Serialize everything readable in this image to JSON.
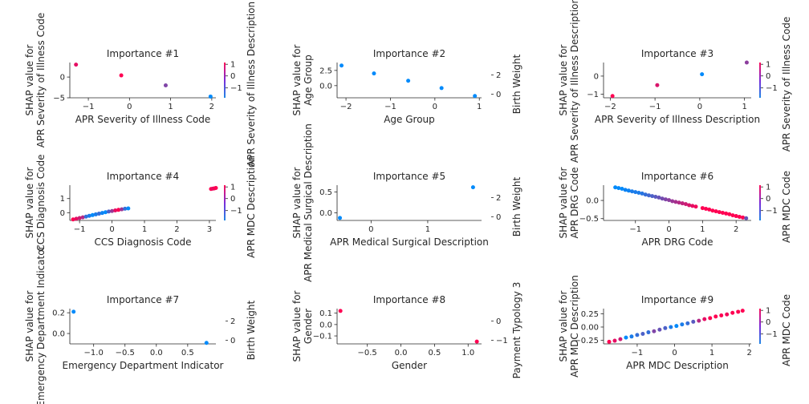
{
  "figure": {
    "colors": {
      "low": "#008afb",
      "high": "#ff0052",
      "text": "#262626",
      "axis": "#262626",
      "colorbar_low": "#1e88e5",
      "colorbar_high": "#ff0d57"
    }
  },
  "chart_data": [
    {
      "type": "scatter",
      "title": "Importance #1",
      "xlabel": "APR Severity of Illness Code",
      "ylabel": [
        "SHAP value for",
        "APR Severity of Illness Code"
      ],
      "colorbar_label": "APR Severity of Illness Description",
      "xlim": [
        -1.45,
        2.1
      ],
      "ylim": [
        -5,
        3.5
      ],
      "xticks": [
        -1,
        0,
        1,
        2
      ],
      "xtick_labels": [
        "−1",
        "0",
        "1",
        "2"
      ],
      "yticks": [
        0,
        -5
      ],
      "ytick_labels": [
        "0",
        "−5"
      ],
      "colorbar_ticks": [
        1,
        0,
        -1
      ],
      "colorbar_tick_labels": [
        "1",
        "0",
        "−1"
      ],
      "x": [
        -1.3,
        -0.2,
        0.88,
        1.97
      ],
      "y": [
        3.0,
        0.4,
        -2.0,
        -4.7
      ],
      "c": [
        0.9,
        1.0,
        0.5,
        0.0
      ]
    },
    {
      "type": "scatter",
      "title": "Importance #2",
      "xlabel": "Age Group",
      "ylabel": [
        "SHAP value for",
        "Age Group"
      ],
      "colorbar_label": "Birth Weight",
      "colorbar_no_bar": true,
      "xlim": [
        -2.2,
        1.05
      ],
      "ylim": [
        -2.0,
        3.8
      ],
      "xticks": [
        -2,
        -1,
        0,
        1
      ],
      "xtick_labels": [
        "−2",
        "−1",
        "0",
        "1"
      ],
      "yticks": [
        2.5,
        0.0
      ],
      "ytick_labels": [
        "2.5",
        "0.0"
      ],
      "colorbar_ticks": [
        2,
        0
      ],
      "colorbar_tick_labels": [
        "2",
        "0"
      ],
      "x": [
        -2.1,
        -1.37,
        -0.6,
        0.15,
        0.9
      ],
      "y": [
        3.3,
        2.0,
        0.8,
        -0.4,
        -1.7
      ],
      "c": [
        0.0,
        0.0,
        0.0,
        0.0,
        0.0
      ]
    },
    {
      "type": "scatter",
      "title": "Importance #3",
      "xlabel": "APR Severity of Illness Description",
      "ylabel": [
        "SHAP value for",
        "APR Severity of Illness Description"
      ],
      "colorbar_label": "APR Severity of Illness Code",
      "xlim": [
        -2.15,
        1.15
      ],
      "ylim": [
        -1.2,
        0.75
      ],
      "xticks": [
        -2,
        -1,
        0,
        1
      ],
      "xtick_labels": [
        "−2",
        "−1",
        "0",
        "1"
      ],
      "yticks": [
        0,
        -1
      ],
      "ytick_labels": [
        "0",
        "−1"
      ],
      "colorbar_ticks": [
        1,
        0,
        -1
      ],
      "colorbar_tick_labels": [
        "1",
        "0",
        "−1"
      ],
      "x": [
        -1.95,
        -0.95,
        0.05,
        1.05
      ],
      "y": [
        -1.1,
        -0.5,
        0.1,
        0.75
      ],
      "c": [
        1.0,
        0.85,
        0.0,
        0.55
      ]
    },
    {
      "type": "scatter",
      "title": "Importance #4",
      "xlabel": "CCS Diagnosis Code",
      "ylabel": [
        "SHAP value for",
        "CCS Diagnosis Code"
      ],
      "colorbar_label": "APR MDC Description",
      "xlim": [
        -1.3,
        3.2
      ],
      "ylim": [
        -0.55,
        1.95
      ],
      "xticks": [
        -1,
        0,
        1,
        2,
        3
      ],
      "xtick_labels": [
        "−1",
        "0",
        "1",
        "2",
        "3"
      ],
      "yticks": [
        1,
        0
      ],
      "ytick_labels": [
        "1",
        "0"
      ],
      "colorbar_ticks": [
        1,
        0,
        -1
      ],
      "colorbar_tick_labels": [
        "1",
        "0",
        "−1"
      ],
      "x": [
        -1.2,
        -1.1,
        -1.0,
        -0.9,
        -0.8,
        -0.7,
        -0.6,
        -0.5,
        -0.4,
        -0.3,
        -0.2,
        -0.1,
        0.0,
        0.1,
        0.2,
        0.3,
        0.4,
        0.5,
        3.05,
        3.1,
        3.15,
        3.2
      ],
      "y": [
        -0.48,
        -0.43,
        -0.38,
        -0.33,
        -0.28,
        -0.22,
        -0.17,
        -0.12,
        -0.07,
        -0.02,
        0.03,
        0.08,
        0.12,
        0.16,
        0.2,
        0.24,
        0.28,
        0.3,
        1.68,
        1.7,
        1.72,
        1.75
      ],
      "c": [
        1.0,
        0.9,
        0.8,
        0.7,
        0.2,
        0.1,
        0.0,
        0.1,
        0.2,
        0.05,
        0.0,
        0.3,
        0.6,
        0.9,
        1.0,
        0.6,
        0.2,
        0.0,
        1.0,
        0.9,
        0.95,
        1.0
      ]
    },
    {
      "type": "scatter",
      "title": "Importance #5",
      "xlabel": "APR Medical Surgical Description",
      "ylabel": [
        "SHAP value for",
        "APR Medical Surgical Description"
      ],
      "colorbar_label": "Birth Weight",
      "colorbar_no_bar": true,
      "xlim": [
        -0.6,
        1.95
      ],
      "ylim": [
        -0.18,
        0.66
      ],
      "xticks": [
        0,
        1
      ],
      "xtick_labels": [
        "0",
        "1"
      ],
      "yticks": [
        0.5,
        0.0
      ],
      "ytick_labels": [
        "0.5",
        "0.0"
      ],
      "colorbar_ticks": [
        2,
        0
      ],
      "colorbar_tick_labels": [
        "2",
        "0"
      ],
      "x": [
        -0.55,
        1.8
      ],
      "y": [
        -0.12,
        0.61
      ],
      "c": [
        0.0,
        0.0
      ]
    },
    {
      "type": "scatter",
      "title": "Importance #6",
      "xlabel": "APR DRG Code",
      "ylabel": [
        "SHAP value for",
        "APR DRG Code"
      ],
      "colorbar_label": "APR MDC Code",
      "xlim": [
        -1.95,
        2.45
      ],
      "ylim": [
        -0.55,
        0.42
      ],
      "xticks": [
        -1,
        0,
        1,
        2
      ],
      "xtick_labels": [
        "−1",
        "0",
        "1",
        "2"
      ],
      "yticks": [
        0.0,
        -0.5
      ],
      "ytick_labels": [
        "0.0",
        "−0.5"
      ],
      "colorbar_ticks": [
        1,
        0,
        -1
      ],
      "colorbar_tick_labels": [
        "1",
        "0",
        "−1"
      ],
      "x": [
        -1.6,
        -1.5,
        -1.4,
        -1.3,
        -1.2,
        -1.1,
        -1.0,
        -0.9,
        -0.8,
        -0.7,
        -0.6,
        -0.5,
        -0.4,
        -0.3,
        -0.2,
        -0.1,
        0.0,
        0.1,
        0.2,
        0.3,
        0.4,
        0.5,
        0.6,
        0.7,
        0.8,
        1.0,
        1.1,
        1.2,
        1.3,
        1.4,
        1.5,
        1.6,
        1.7,
        1.8,
        1.9,
        2.0,
        2.1,
        2.2,
        2.3
      ],
      "y": [
        0.36,
        0.34,
        0.32,
        0.29,
        0.27,
        0.25,
        0.23,
        0.21,
        0.19,
        0.16,
        0.14,
        0.12,
        0.1,
        0.08,
        0.05,
        0.03,
        0.01,
        -0.02,
        -0.04,
        -0.06,
        -0.08,
        -0.1,
        -0.13,
        -0.15,
        -0.17,
        -0.21,
        -0.23,
        -0.25,
        -0.28,
        -0.3,
        -0.32,
        -0.34,
        -0.36,
        -0.38,
        -0.41,
        -0.43,
        -0.45,
        -0.47,
        -0.49
      ],
      "c": [
        0.0,
        0.0,
        0.0,
        0.05,
        0.05,
        0.1,
        0.1,
        0.1,
        0.15,
        0.2,
        0.25,
        0.3,
        0.35,
        0.4,
        0.45,
        0.5,
        0.55,
        0.6,
        0.65,
        0.7,
        0.75,
        0.8,
        0.85,
        0.9,
        0.95,
        1.0,
        1.0,
        1.0,
        1.0,
        1.0,
        1.0,
        1.0,
        1.0,
        1.0,
        1.0,
        1.0,
        1.0,
        1.0,
        0.4
      ]
    },
    {
      "type": "scatter",
      "title": "Importance #7",
      "xlabel": "Emergency Department Indicator",
      "ylabel": [
        "SHAP value for",
        "Emergency Department Indicator"
      ],
      "colorbar_label": "Birth Weight",
      "colorbar_no_bar": true,
      "xlim": [
        -1.38,
        0.95
      ],
      "ylim": [
        -0.1,
        0.24
      ],
      "xticks": [
        -1.0,
        -0.5,
        0.0,
        0.5
      ],
      "xtick_labels": [
        "−1.0",
        "−0.5",
        "0.0",
        "0.5"
      ],
      "yticks": [
        0.2,
        0.0
      ],
      "ytick_labels": [
        "0.2",
        "0.0"
      ],
      "colorbar_ticks": [
        2,
        0
      ],
      "colorbar_tick_labels": [
        "2",
        "0"
      ],
      "x": [
        -1.32,
        0.8
      ],
      "y": [
        0.21,
        -0.09
      ],
      "c": [
        0.0,
        0.0
      ]
    },
    {
      "type": "scatter",
      "title": "Importance #8",
      "xlabel": "Gender",
      "ylabel": [
        "SHAP value for",
        "Gender"
      ],
      "colorbar_label": "Payment Typology 3",
      "colorbar_no_bar": true,
      "xlim": [
        -0.95,
        1.2
      ],
      "ylim": [
        -0.17,
        0.14
      ],
      "xticks": [
        -0.5,
        0.0,
        0.5,
        1.0
      ],
      "xtick_labels": [
        "−0.5",
        "0.0",
        "0.5",
        "1.0"
      ],
      "yticks": [
        0.1,
        0.0,
        -0.1
      ],
      "ytick_labels": [
        "0.1",
        "0.0",
        "−0.1"
      ],
      "colorbar_ticks": [
        0,
        -1
      ],
      "colorbar_tick_labels": [
        "0",
        "−1"
      ],
      "x": [
        -0.9,
        1.13
      ],
      "y": [
        0.12,
        -0.15
      ],
      "c": [
        1.0,
        1.0
      ]
    },
    {
      "type": "scatter",
      "title": "Importance #9",
      "xlabel": "APR MDC Description",
      "ylabel": [
        "SHAP value for",
        "APR MDC Description"
      ],
      "colorbar_label": "APR MDC Code",
      "xlim": [
        -1.9,
        2.05
      ],
      "ylim": [
        -0.32,
        0.35
      ],
      "xticks": [
        -1,
        0,
        1,
        2
      ],
      "xtick_labels": [
        "−1",
        "0",
        "1",
        "2"
      ],
      "yticks": [
        0.25,
        0.0,
        -0.25
      ],
      "ytick_labels": [
        "0.25",
        "0.00",
        "−0.25"
      ],
      "colorbar_ticks": [
        1,
        0,
        -1
      ],
      "colorbar_tick_labels": [
        "1",
        "0",
        "−1"
      ],
      "x": [
        -1.75,
        -1.6,
        -1.45,
        -1.3,
        -1.15,
        -1.0,
        -0.85,
        -0.7,
        -0.55,
        -0.4,
        -0.25,
        -0.1,
        0.05,
        0.2,
        0.35,
        0.5,
        0.65,
        0.8,
        0.95,
        1.1,
        1.25,
        1.4,
        1.55,
        1.7,
        1.82
      ],
      "y": [
        -0.28,
        -0.26,
        -0.23,
        -0.2,
        -0.18,
        -0.15,
        -0.13,
        -0.1,
        -0.08,
        -0.05,
        -0.02,
        0.0,
        0.02,
        0.05,
        0.07,
        0.1,
        0.12,
        0.15,
        0.17,
        0.2,
        0.22,
        0.24,
        0.27,
        0.29,
        0.31
      ],
      "c": [
        1.0,
        0.9,
        0.8,
        0.0,
        0.1,
        0.2,
        0.3,
        0.2,
        0.5,
        0.4,
        0.3,
        0.1,
        0.0,
        0.1,
        0.2,
        0.35,
        0.7,
        0.9,
        1.0,
        1.0,
        1.0,
        0.95,
        1.0,
        1.0,
        1.0
      ]
    }
  ]
}
